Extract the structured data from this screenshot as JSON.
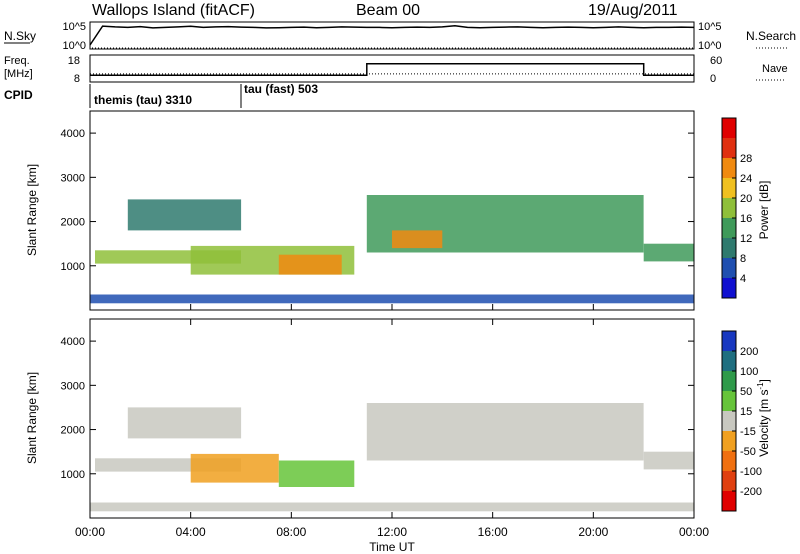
{
  "header": {
    "station": "Wallops Island (fitACF)",
    "beam": "Beam 00",
    "date": "19/Aug/2011"
  },
  "chart_data": [
    {
      "type": "line",
      "panel": "noise",
      "left_label": "N.Sky",
      "right_label": "N.Search",
      "left_ticks": [
        "10^5",
        "10^0"
      ],
      "right_ticks": [
        "10^5",
        "10^0"
      ],
      "x_range_hours": [
        0,
        24
      ],
      "series": [
        {
          "name": "N.Sky",
          "style": "solid",
          "x": [
            0.0,
            0.5,
            1.0,
            1.5,
            2.0,
            2.5,
            3.0,
            3.5,
            4.0,
            4.5,
            5.0,
            5.5,
            6.0,
            6.5,
            7.0,
            7.5,
            8.0,
            8.5,
            9.0,
            9.5,
            10.0,
            10.5,
            11.0,
            11.5,
            12.0,
            12.5,
            13.0,
            13.5,
            14.0,
            14.5,
            15.0,
            15.5,
            16.0,
            16.5,
            17.0,
            17.5,
            18.0,
            18.5,
            19.0,
            19.5,
            20.0,
            20.5,
            21.0,
            21.5,
            22.0,
            22.5,
            23.0,
            23.5,
            24.0
          ],
          "level": [
            0.15,
            0.85,
            0.82,
            0.8,
            0.83,
            0.78,
            0.8,
            0.82,
            0.84,
            0.8,
            0.82,
            0.83,
            0.81,
            0.8,
            0.78,
            0.79,
            0.8,
            0.81,
            0.79,
            0.8,
            0.82,
            0.81,
            0.8,
            0.8,
            0.79,
            0.8,
            0.81,
            0.8,
            0.82,
            0.86,
            0.8,
            0.79,
            0.8,
            0.81,
            0.82,
            0.8,
            0.79,
            0.8,
            0.81,
            0.8,
            0.79,
            0.8,
            0.82,
            0.8,
            0.79,
            0.8,
            0.8,
            0.81,
            0.8
          ]
        }
      ]
    },
    {
      "type": "line",
      "panel": "frequency",
      "left_label": "Freq.",
      "left_unit": "[MHz]",
      "right_label": "Nave",
      "left_ticks": [
        "18",
        "8"
      ],
      "right_ticks": [
        "60",
        "0"
      ],
      "series": [
        {
          "name": "Freq.",
          "style": "solid",
          "x": [
            0,
            11.0,
            11.0,
            22.0,
            22.0,
            24
          ],
          "y": [
            9.5,
            9.5,
            15.5,
            15.5,
            9.5,
            9.5
          ]
        },
        {
          "name": "Nave",
          "style": "dotted",
          "x": [
            0,
            24
          ],
          "y": [
            18,
            18
          ]
        }
      ]
    },
    {
      "type": "table",
      "panel": "cpid",
      "label": "CPID",
      "segments": [
        {
          "start": 0,
          "end": 6.0,
          "text": "themis (tau) 3310"
        },
        {
          "start": 6.0,
          "end": 24,
          "text": "tau (fast) 503"
        }
      ]
    },
    {
      "type": "heatmap",
      "panel": "power",
      "ylabel": "Slant Range [km]",
      "yticks": [
        1000,
        2000,
        3000,
        4000
      ],
      "ylim": [
        0,
        4500
      ],
      "xlim": [
        0,
        24
      ],
      "colorbar": {
        "label": "Power [dB]",
        "ticks": [
          "4",
          "8",
          "12",
          "16",
          "20",
          "24",
          "28"
        ],
        "range": [
          0,
          30
        ],
        "colors": [
          "#1010d0",
          "#1f4fb0",
          "#2f7a6e",
          "#3f9a5a",
          "#8fbf3a",
          "#f0c020",
          "#f08a10",
          "#e03010",
          "#e00000"
        ]
      },
      "regions": [
        {
          "t0": 0.2,
          "t1": 6.0,
          "r0": 1050,
          "r1": 1350,
          "value": 14
        },
        {
          "t0": 1.5,
          "t1": 6.0,
          "r0": 1800,
          "r1": 2500,
          "value": 7
        },
        {
          "t0": 4.0,
          "t1": 10.5,
          "r0": 800,
          "r1": 1450,
          "value": 16
        },
        {
          "t0": 7.5,
          "t1": 10.0,
          "r0": 800,
          "r1": 1250,
          "value": 22
        },
        {
          "t0": 11.0,
          "t1": 22.0,
          "r0": 1300,
          "r1": 2600,
          "value": 13
        },
        {
          "t0": 12.0,
          "t1": 14.0,
          "r0": 1400,
          "r1": 1800,
          "value": 20
        },
        {
          "t0": 22.0,
          "t1": 24.0,
          "r0": 1100,
          "r1": 1500,
          "value": 12
        },
        {
          "t0": 0.0,
          "t1": 24.0,
          "r0": 150,
          "r1": 350,
          "value": 6
        }
      ]
    },
    {
      "type": "heatmap",
      "panel": "velocity",
      "ylabel": "Slant Range [km]",
      "yticks": [
        1000,
        2000,
        3000,
        4000
      ],
      "ylim": [
        0,
        4500
      ],
      "xlim": [
        0,
        24
      ],
      "colorbar": {
        "label": "Velocity [m s",
        "label_sup": "-1",
        "label_end": "]",
        "ticks": [
          "200",
          "100",
          "50",
          "15",
          "-15",
          "-50",
          "-100",
          "-200"
        ],
        "colors": [
          "#1838c0",
          "#1f6f80",
          "#2f9a4a",
          "#66c43a",
          "#c8c8c0",
          "#f0a020",
          "#f07010",
          "#e04010",
          "#e00000"
        ]
      },
      "regions": [
        {
          "t0": 0.2,
          "t1": 6.0,
          "r0": 1050,
          "r1": 1350,
          "value": 0
        },
        {
          "t0": 1.5,
          "t1": 6.0,
          "r0": 1800,
          "r1": 2500,
          "value": 0
        },
        {
          "t0": 4.0,
          "t1": 7.5,
          "r0": 800,
          "r1": 1450,
          "value": -30
        },
        {
          "t0": 7.5,
          "t1": 10.5,
          "r0": 700,
          "r1": 1300,
          "value": 40
        },
        {
          "t0": 11.0,
          "t1": 22.0,
          "r0": 1300,
          "r1": 2600,
          "value": 0
        },
        {
          "t0": 22.0,
          "t1": 24.0,
          "r0": 1100,
          "r1": 1500,
          "value": 0
        },
        {
          "t0": 0.0,
          "t1": 24.0,
          "r0": 150,
          "r1": 350,
          "value": 20
        }
      ],
      "xticks": [
        "00:00",
        "04:00",
        "08:00",
        "12:00",
        "16:00",
        "20:00",
        "00:00"
      ],
      "xlabel": "Time UT"
    }
  ]
}
